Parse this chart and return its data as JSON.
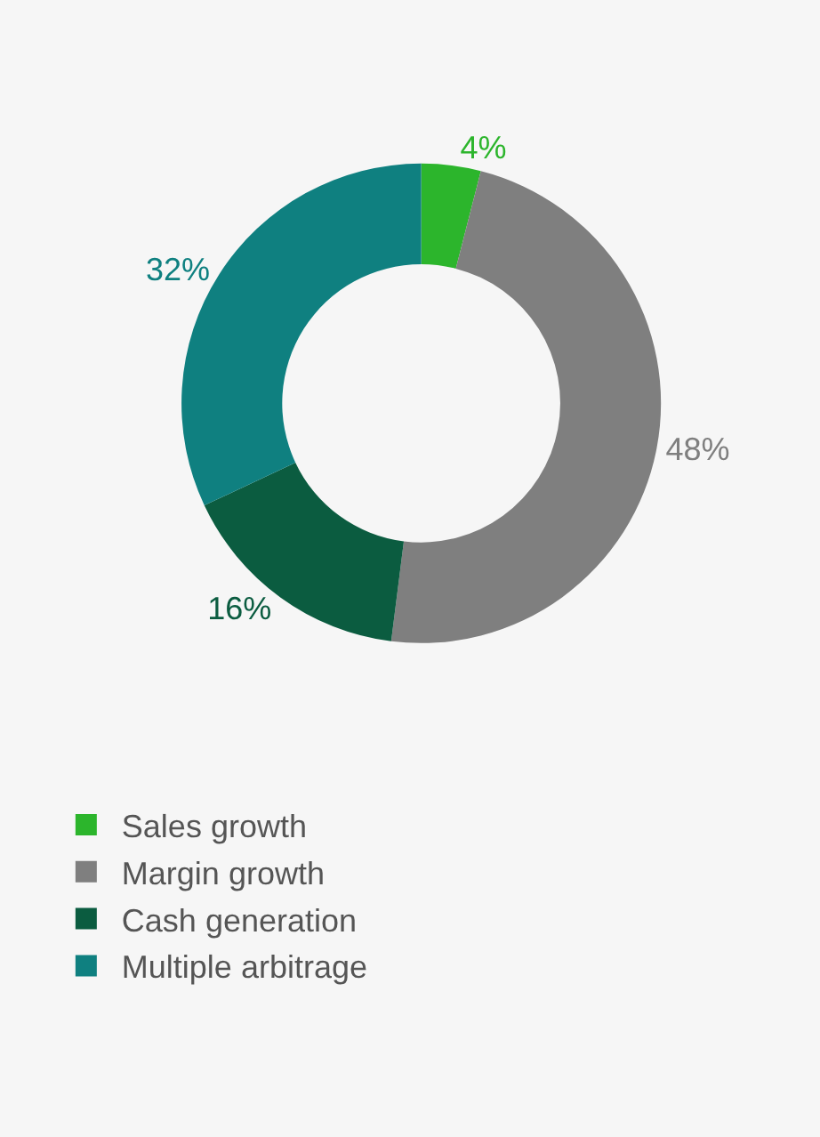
{
  "chart_data": {
    "type": "donut",
    "categories": [
      "Sales growth",
      "Margin growth",
      "Cash generation",
      "Multiple arbitrage"
    ],
    "values": [
      4,
      48,
      16,
      32
    ],
    "colors": [
      "#2cb52c",
      "#7f7f7f",
      "#0b5c40",
      "#0f8080"
    ],
    "value_labels": [
      "4%",
      "48%",
      "16%",
      "32%"
    ],
    "legend": "bottom left"
  }
}
